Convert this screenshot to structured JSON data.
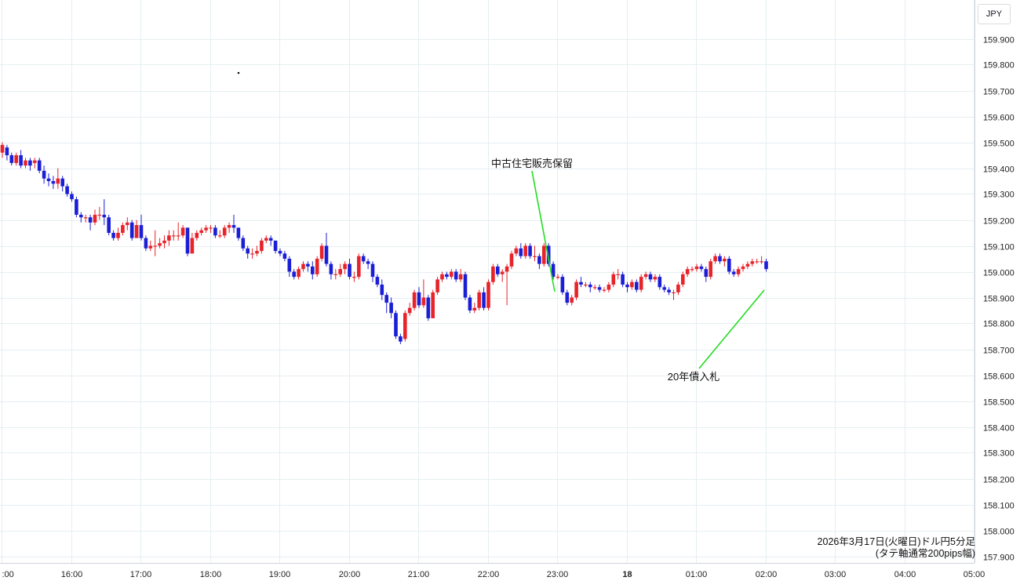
{
  "currency": "JPY",
  "caption": {
    "line1": "2026年3月17日(火曜日)ドル円5分足",
    "line2": "(タテ軸通常200pips幅)"
  },
  "colors": {
    "up": "#e8232a",
    "down": "#1a1fd6",
    "annotation_line": "#22dd22",
    "grid": "#e6eef2"
  },
  "chart_data": {
    "type": "candlestick",
    "x_ticks": [
      ":00",
      "16:00",
      "17:00",
      "18:00",
      "19:00",
      "20:00",
      "21:00",
      "22:00",
      "23:00",
      "18",
      "01:00",
      "02:00",
      "03:00",
      "04:00",
      "05:00"
    ],
    "y_ticks": [
      "159.900",
      "159.800",
      "159.700",
      "159.600",
      "159.500",
      "159.400",
      "159.300",
      "159.200",
      "159.100",
      "159.000",
      "158.900",
      "158.800",
      "158.700",
      "158.600",
      "158.500",
      "158.400",
      "158.300",
      "158.200",
      "158.100",
      "158.000",
      "157.900"
    ],
    "y_tick_values": [
      159.9,
      159.8,
      159.7,
      159.6,
      159.5,
      159.4,
      159.3,
      159.2,
      159.1,
      159.0,
      158.9,
      158.8,
      158.7,
      158.6,
      158.5,
      158.4,
      158.3,
      158.2,
      158.1,
      158.0,
      157.9
    ],
    "ylim": [
      157.86,
      159.98
    ],
    "annotations": [
      {
        "text": "中古住宅販売保留",
        "time": "23:00"
      },
      {
        "text": "20年債入札",
        "time": "02:00"
      }
    ],
    "candles": [
      [
        159.46,
        159.49,
        159.44,
        159.5
      ],
      [
        159.48,
        159.45,
        159.43,
        159.49
      ],
      [
        159.45,
        159.42,
        159.41,
        159.46
      ],
      [
        159.42,
        159.45,
        159.41,
        159.46
      ],
      [
        159.45,
        159.41,
        159.4,
        159.47
      ],
      [
        159.41,
        159.43,
        159.4,
        159.44
      ],
      [
        159.43,
        159.41,
        159.39,
        159.44
      ],
      [
        159.42,
        159.43,
        159.4,
        159.44
      ],
      [
        159.43,
        159.39,
        159.38,
        159.44
      ],
      [
        159.39,
        159.36,
        159.34,
        159.41
      ],
      [
        159.36,
        159.35,
        159.33,
        159.38
      ],
      [
        159.35,
        159.34,
        159.32,
        159.37
      ],
      [
        159.34,
        159.36,
        159.32,
        159.4
      ],
      [
        159.36,
        159.33,
        159.31,
        159.37
      ],
      [
        159.33,
        159.3,
        159.29,
        159.34
      ],
      [
        159.3,
        159.28,
        159.27,
        159.31
      ],
      [
        159.28,
        159.22,
        159.21,
        159.29
      ],
      [
        159.22,
        159.21,
        159.19,
        159.23
      ],
      [
        159.21,
        159.21,
        159.19,
        159.22
      ],
      [
        159.21,
        159.19,
        159.16,
        159.22
      ],
      [
        159.19,
        159.22,
        159.18,
        159.24
      ],
      [
        159.22,
        159.22,
        159.2,
        159.25
      ],
      [
        159.22,
        159.21,
        159.18,
        159.28
      ],
      [
        159.21,
        159.15,
        159.14,
        159.22
      ],
      [
        159.15,
        159.13,
        159.12,
        159.16
      ],
      [
        159.13,
        159.15,
        159.12,
        159.17
      ],
      [
        159.15,
        159.18,
        159.14,
        159.19
      ],
      [
        159.18,
        159.19,
        159.16,
        159.21
      ],
      [
        159.19,
        159.13,
        159.12,
        159.2
      ],
      [
        159.13,
        159.18,
        159.13,
        159.2
      ],
      [
        159.18,
        159.13,
        159.12,
        159.22
      ],
      [
        159.13,
        159.09,
        159.08,
        159.14
      ],
      [
        159.09,
        159.1,
        159.08,
        159.12
      ],
      [
        159.1,
        159.1,
        159.06,
        159.16
      ],
      [
        159.1,
        159.11,
        159.09,
        159.13
      ],
      [
        159.11,
        159.12,
        159.09,
        159.14
      ],
      [
        159.12,
        159.14,
        159.1,
        159.16
      ],
      [
        159.14,
        159.14,
        159.12,
        159.16
      ],
      [
        159.14,
        159.14,
        159.12,
        159.19
      ],
      [
        159.14,
        159.17,
        159.13,
        159.18
      ],
      [
        159.17,
        159.07,
        159.06,
        159.17
      ],
      [
        159.07,
        159.13,
        159.07,
        159.15
      ],
      [
        159.13,
        159.15,
        159.12,
        159.16
      ],
      [
        159.15,
        159.16,
        159.14,
        159.17
      ],
      [
        159.16,
        159.17,
        159.15,
        159.18
      ],
      [
        159.17,
        159.17,
        159.15,
        159.18
      ],
      [
        159.17,
        159.14,
        159.13,
        159.18
      ],
      [
        159.14,
        159.14,
        159.13,
        159.16
      ],
      [
        159.14,
        159.17,
        159.13,
        159.18
      ],
      [
        159.17,
        159.18,
        159.15,
        159.19
      ],
      [
        159.18,
        159.17,
        159.15,
        159.22
      ],
      [
        159.17,
        159.13,
        159.12,
        159.17
      ],
      [
        159.13,
        159.09,
        159.08,
        159.14
      ],
      [
        159.09,
        159.07,
        159.05,
        159.1
      ],
      [
        159.07,
        159.07,
        159.05,
        159.09
      ],
      [
        159.07,
        159.08,
        159.06,
        159.1
      ],
      [
        159.08,
        159.12,
        159.07,
        159.13
      ],
      [
        159.12,
        159.13,
        159.11,
        159.14
      ],
      [
        159.13,
        159.12,
        159.1,
        159.14
      ],
      [
        159.12,
        159.08,
        159.07,
        159.12
      ],
      [
        159.08,
        159.07,
        159.06,
        159.09
      ],
      [
        159.07,
        159.05,
        159.04,
        159.08
      ],
      [
        159.05,
        159.0,
        158.98,
        159.06
      ],
      [
        159.0,
        158.98,
        158.97,
        159.01
      ],
      [
        158.98,
        159.01,
        158.97,
        159.02
      ],
      [
        159.01,
        159.03,
        159.0,
        159.04
      ],
      [
        159.03,
        159.02,
        159.0,
        159.04
      ],
      [
        159.02,
        158.99,
        158.97,
        159.04
      ],
      [
        158.99,
        159.05,
        158.98,
        159.06
      ],
      [
        159.05,
        159.1,
        159.04,
        159.11
      ],
      [
        159.1,
        159.03,
        159.02,
        159.15
      ],
      [
        159.03,
        158.99,
        158.97,
        159.04
      ],
      [
        158.99,
        158.99,
        158.97,
        159.01
      ],
      [
        158.99,
        159.01,
        158.98,
        159.03
      ],
      [
        159.01,
        159.03,
        158.99,
        159.04
      ],
      [
        159.03,
        158.98,
        158.97,
        159.05
      ],
      [
        158.98,
        158.98,
        158.96,
        159.0
      ],
      [
        158.98,
        159.06,
        158.97,
        159.07
      ],
      [
        159.06,
        159.04,
        159.03,
        159.07
      ],
      [
        159.04,
        159.03,
        159.01,
        159.05
      ],
      [
        159.03,
        158.98,
        158.96,
        159.04
      ],
      [
        158.98,
        158.95,
        158.94,
        158.99
      ],
      [
        158.95,
        158.91,
        158.89,
        158.97
      ],
      [
        158.91,
        158.88,
        158.84,
        158.92
      ],
      [
        158.88,
        158.84,
        158.82,
        158.9
      ],
      [
        158.84,
        158.75,
        158.74,
        158.85
      ],
      [
        158.75,
        158.73,
        158.72,
        158.76
      ],
      [
        158.74,
        158.84,
        158.73,
        158.85
      ],
      [
        158.84,
        158.86,
        158.83,
        158.88
      ],
      [
        158.86,
        158.92,
        158.85,
        158.93
      ],
      [
        158.92,
        158.87,
        158.86,
        158.94
      ],
      [
        158.87,
        158.9,
        158.86,
        158.97
      ],
      [
        158.9,
        158.82,
        158.81,
        158.91
      ],
      [
        158.82,
        158.92,
        158.82,
        158.93
      ],
      [
        158.92,
        158.97,
        158.91,
        158.98
      ],
      [
        158.97,
        158.99,
        158.96,
        159.0
      ],
      [
        158.99,
        158.98,
        158.97,
        159.0
      ],
      [
        158.98,
        159.0,
        158.97,
        159.01
      ],
      [
        159.0,
        158.97,
        158.96,
        159.01
      ],
      [
        158.97,
        158.99,
        158.96,
        159.01
      ],
      [
        158.99,
        158.9,
        158.89,
        159.0
      ],
      [
        158.9,
        158.85,
        158.84,
        158.91
      ],
      [
        158.85,
        158.86,
        158.84,
        158.88
      ],
      [
        158.86,
        158.92,
        158.85,
        158.93
      ],
      [
        158.92,
        158.86,
        158.85,
        158.94
      ],
      [
        158.86,
        158.96,
        158.85,
        158.97
      ],
      [
        158.96,
        159.02,
        158.95,
        159.03
      ],
      [
        159.02,
        158.99,
        158.98,
        159.03
      ],
      [
        158.99,
        159.0,
        158.96,
        159.01
      ],
      [
        159.0,
        159.02,
        158.87,
        159.03
      ],
      [
        159.02,
        159.07,
        159.01,
        159.08
      ],
      [
        159.07,
        159.09,
        159.06,
        159.1
      ],
      [
        159.09,
        159.06,
        159.05,
        159.11
      ],
      [
        159.06,
        159.1,
        159.05,
        159.11
      ],
      [
        159.1,
        159.06,
        159.05,
        159.11
      ],
      [
        159.06,
        159.06,
        159.04,
        159.1
      ],
      [
        159.06,
        159.03,
        159.01,
        159.07
      ],
      [
        159.03,
        159.1,
        159.02,
        159.11
      ],
      [
        159.1,
        159.03,
        159.02,
        159.11
      ],
      [
        159.03,
        158.98,
        158.97,
        159.04
      ],
      [
        158.98,
        158.98,
        158.97,
        158.99
      ],
      [
        158.98,
        158.92,
        158.91,
        158.99
      ],
      [
        158.92,
        158.88,
        158.87,
        158.93
      ],
      [
        158.88,
        158.9,
        158.87,
        158.91
      ],
      [
        158.9,
        158.96,
        158.89,
        158.97
      ],
      [
        158.96,
        158.95,
        158.94,
        158.98
      ],
      [
        158.95,
        158.95,
        158.94,
        158.96
      ],
      [
        158.95,
        158.94,
        158.92,
        158.96
      ],
      [
        158.94,
        158.94,
        158.93,
        158.95
      ],
      [
        158.94,
        158.93,
        158.92,
        158.95
      ],
      [
        158.93,
        158.93,
        158.92,
        158.94
      ],
      [
        158.93,
        158.95,
        158.92,
        158.96
      ],
      [
        158.95,
        158.99,
        158.94,
        159.0
      ],
      [
        158.99,
        158.99,
        158.97,
        159.01
      ],
      [
        158.99,
        158.95,
        158.94,
        159.0
      ],
      [
        158.95,
        158.94,
        158.92,
        158.96
      ],
      [
        158.94,
        158.96,
        158.93,
        158.97
      ],
      [
        158.96,
        158.93,
        158.92,
        158.97
      ],
      [
        158.93,
        158.98,
        158.92,
        158.99
      ],
      [
        158.98,
        158.99,
        158.97,
        159.0
      ],
      [
        158.99,
        158.97,
        158.96,
        159.0
      ],
      [
        158.97,
        158.98,
        158.96,
        158.99
      ],
      [
        158.98,
        158.94,
        158.93,
        158.99
      ],
      [
        158.94,
        158.93,
        158.92,
        158.95
      ],
      [
        158.93,
        158.92,
        158.91,
        158.94
      ],
      [
        158.92,
        158.92,
        158.89,
        158.93
      ],
      [
        158.92,
        158.95,
        158.91,
        158.96
      ],
      [
        158.95,
        158.99,
        158.94,
        159.0
      ],
      [
        158.99,
        159.01,
        158.98,
        159.02
      ],
      [
        159.01,
        159.01,
        159.0,
        159.02
      ],
      [
        159.01,
        159.02,
        159.0,
        159.03
      ],
      [
        159.02,
        159.01,
        159.0,
        159.03
      ],
      [
        159.01,
        158.98,
        158.96,
        159.02
      ],
      [
        158.98,
        159.04,
        158.97,
        159.05
      ],
      [
        159.04,
        159.06,
        159.03,
        159.07
      ],
      [
        159.06,
        159.04,
        159.03,
        159.07
      ],
      [
        159.04,
        159.05,
        159.02,
        159.06
      ],
      [
        159.05,
        159.0,
        158.99,
        159.06
      ],
      [
        159.0,
        158.99,
        158.98,
        159.01
      ],
      [
        158.99,
        159.01,
        158.98,
        159.02
      ],
      [
        159.01,
        159.02,
        159.0,
        159.03
      ],
      [
        159.02,
        159.03,
        159.01,
        159.04
      ],
      [
        159.03,
        159.04,
        159.02,
        159.05
      ],
      [
        159.04,
        159.04,
        159.03,
        159.05
      ],
      [
        159.04,
        159.04,
        159.03,
        159.06
      ],
      [
        159.04,
        159.01,
        159.0,
        159.05
      ]
    ]
  }
}
